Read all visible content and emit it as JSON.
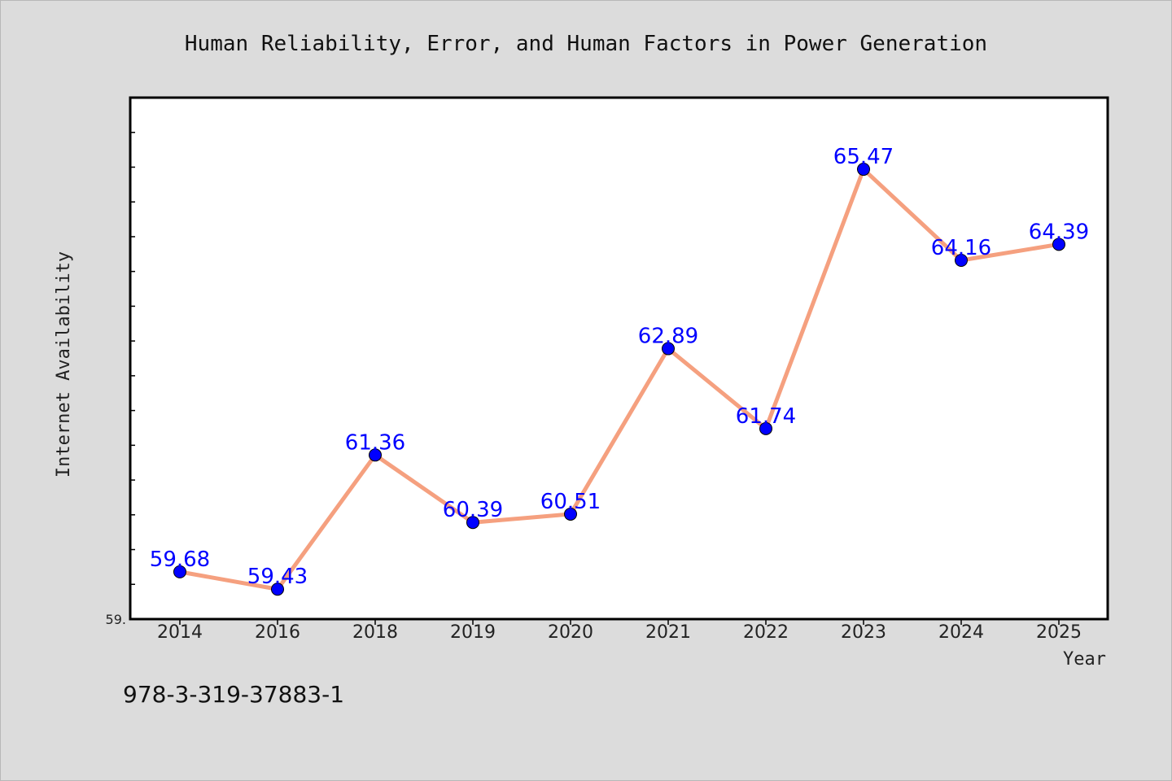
{
  "chart_data": {
    "type": "line",
    "title": "Human Reliability, Error, and Human Factors in Power Generation",
    "xlabel": "Year",
    "ylabel": "Internet Availability",
    "categories": [
      "2014",
      "2016",
      "2018",
      "2019",
      "2020",
      "2021",
      "2022",
      "2023",
      "2024",
      "2025"
    ],
    "values": [
      59.68,
      59.43,
      61.36,
      60.39,
      60.51,
      62.89,
      61.74,
      65.47,
      64.16,
      64.39
    ],
    "data_labels": [
      "59.68",
      "59.43",
      "61.36",
      "60.39",
      "60.51",
      "62.89",
      "61.74",
      "65.47",
      "64.16",
      "64.39"
    ],
    "ylim": [
      59.0,
      66.5
    ],
    "y_tick_label_visible": "59.",
    "grid": false,
    "legend": "none",
    "line_color": "#f5a07f",
    "marker_color": "#0000ff",
    "label_color": "#0000ff",
    "plot_background": "#ffffff",
    "figure_background": "#dcdcdc"
  },
  "footer": {
    "isbn": "978-3-319-37883-1"
  }
}
